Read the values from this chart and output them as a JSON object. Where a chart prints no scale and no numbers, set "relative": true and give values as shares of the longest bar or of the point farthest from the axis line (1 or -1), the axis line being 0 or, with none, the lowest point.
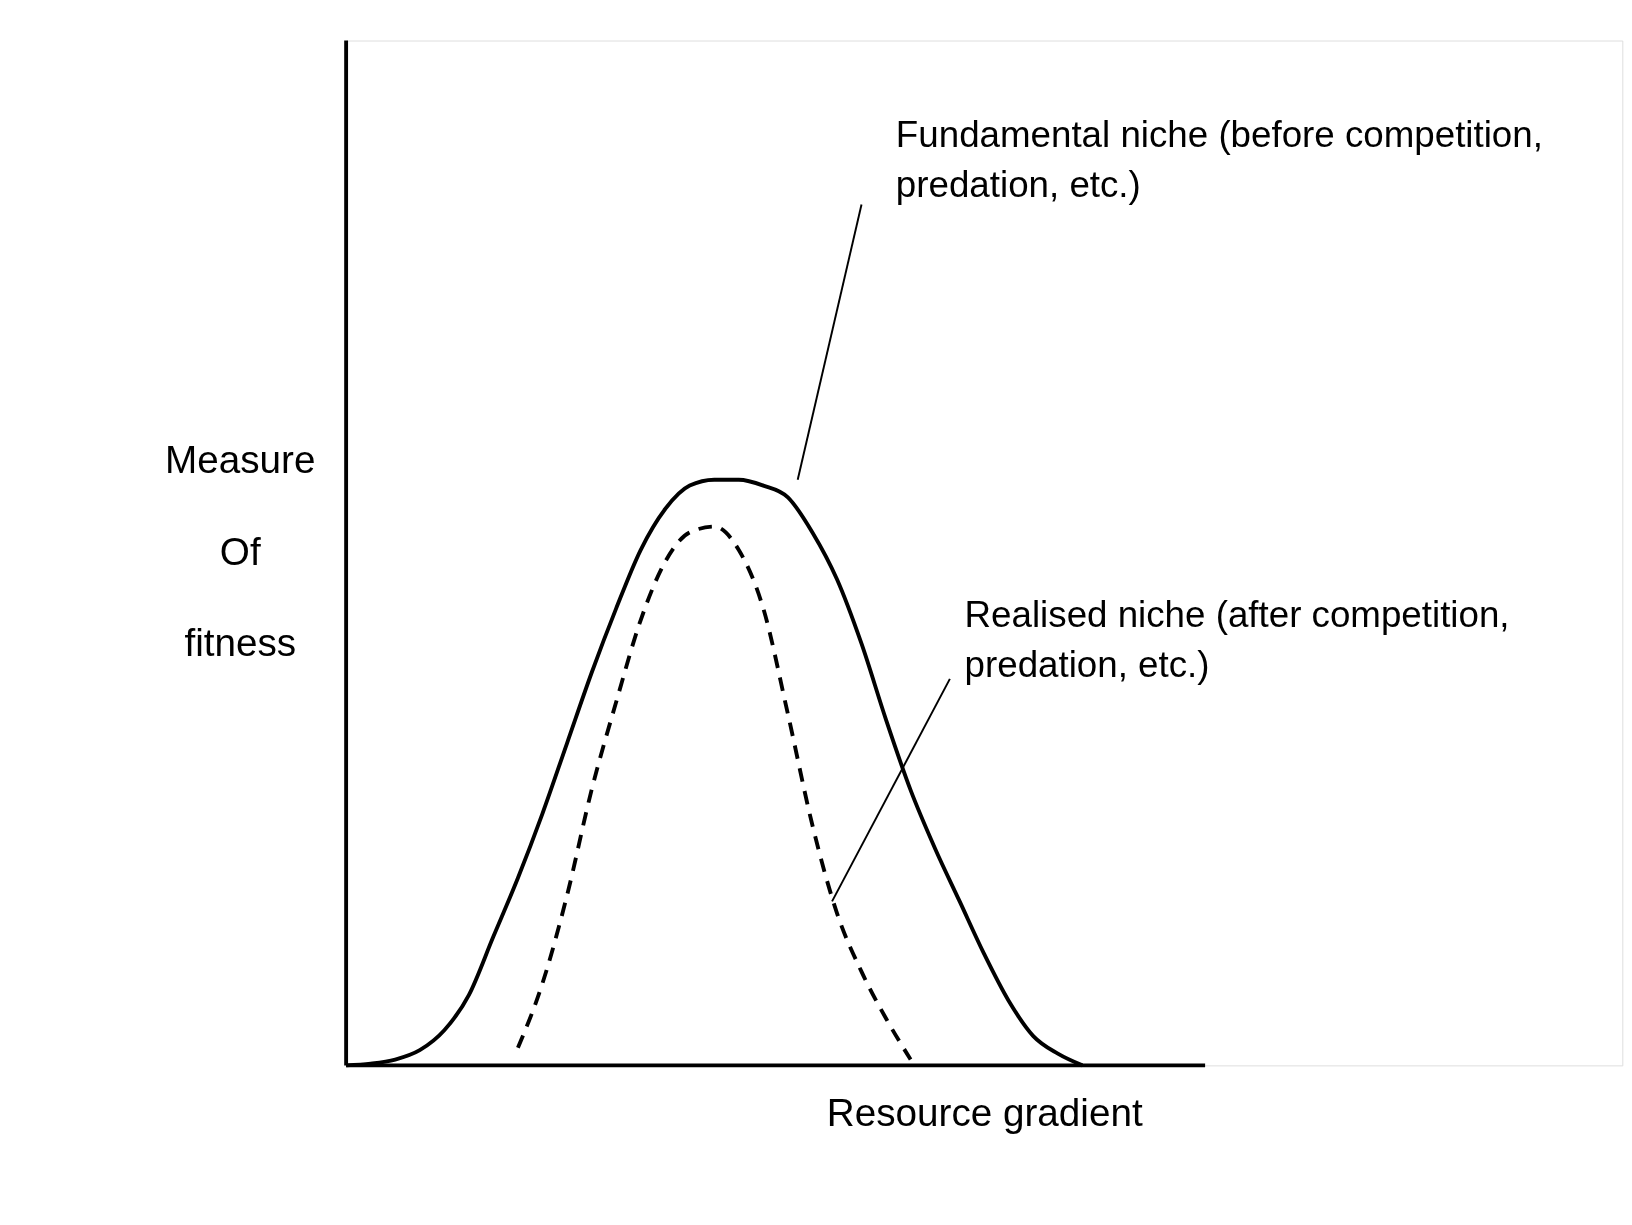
{
  "chart_data": {
    "type": "line",
    "relative": true,
    "xlabel": "Resource gradient",
    "ylabel": "Measure Of fitness",
    "categories": [
      null,
      null,
      null,
      null,
      null,
      null,
      null,
      null,
      null,
      null,
      null,
      null,
      null,
      null,
      null,
      null,
      null,
      null,
      null,
      null,
      null,
      null,
      null,
      null,
      null,
      null,
      null,
      null,
      null,
      null,
      null
    ],
    "series": [
      {
        "color": "#000000",
        "line_style": "solid",
        "values": [
          0,
          0.003,
          0.01,
          0.026,
          0.06,
          0.12,
          0.22,
          0.32,
          0.43,
          0.55,
          0.67,
          0.78,
          0.88,
          0.95,
          0.99,
          1,
          1,
          0.99,
          0.97,
          0.91,
          0.83,
          0.72,
          0.59,
          0.47,
          0.37,
          0.28,
          0.19,
          0.11,
          0.05,
          0.02,
          0
        ]
      },
      {
        "color": "#000000",
        "line_style": "dashed",
        "values": [
          null,
          null,
          null,
          null,
          null,
          null,
          null,
          0.03,
          0.14,
          0.29,
          0.47,
          0.62,
          0.76,
          0.86,
          0.91,
          0.92,
          0.88,
          0.78,
          0.6,
          0.41,
          0.26,
          0.16,
          0.08,
          0.01,
          null,
          null,
          null,
          null,
          null,
          null,
          null
        ]
      }
    ],
    "annotations": [
      "Fundamental niche (before competition, predation, etc.)",
      "Realised niche (after competition, predation, etc.)"
    ],
    "grid": false,
    "marker": "none",
    "tick_labels": false
  }
}
